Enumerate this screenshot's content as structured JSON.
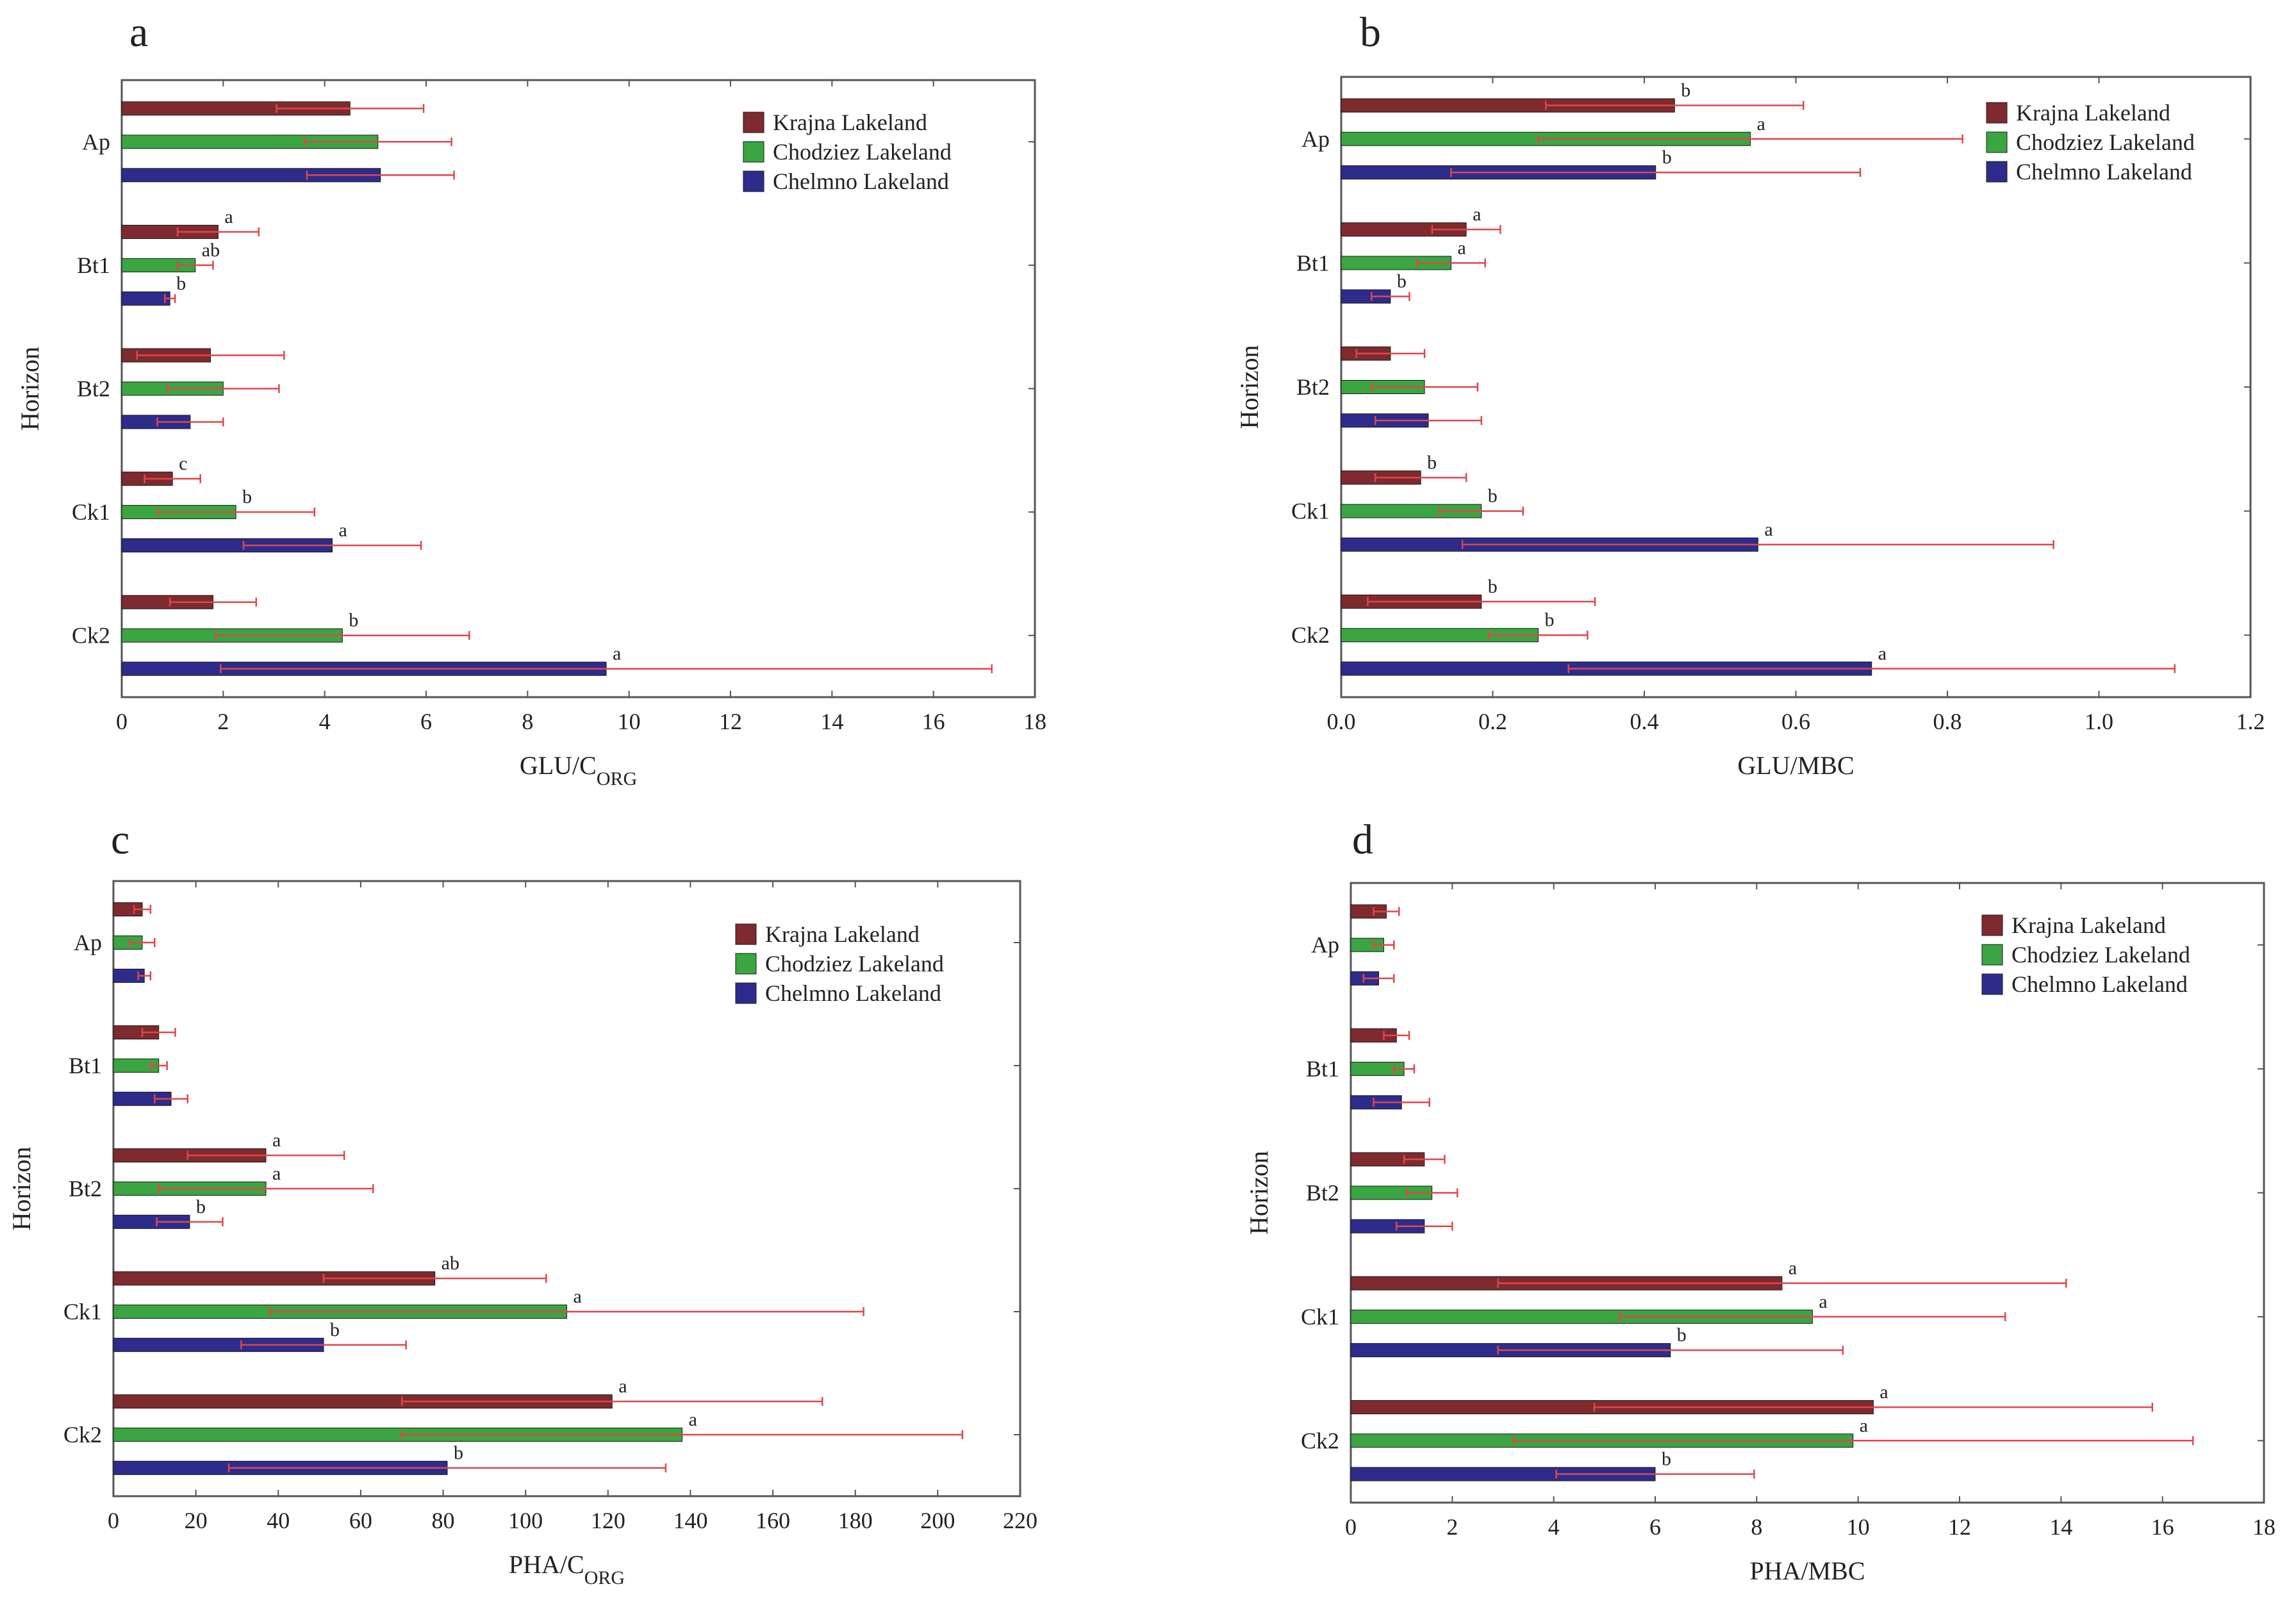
{
  "figure": {
    "legend": [
      "Krajna Lakeland",
      "Chodziez Lakeland",
      "Chelmno Lakeland"
    ],
    "colors": {
      "Krajna Lakeland": "#7f2a2e",
      "Chodziez Lakeland": "#3aa541",
      "Chelmno Lakeland": "#2d2c8c",
      "error_bar": "#e0464a",
      "frame": "#555555"
    }
  },
  "chart_data": [
    {
      "panel": "a",
      "type": "bar",
      "orientation": "horizontal",
      "ylabel": "Horizon",
      "xlabel_main": "GLU/C",
      "xlabel_sub": "ORG",
      "categories": [
        "Ap",
        "Bt1",
        "Bt2",
        "Ck1",
        "Ck2"
      ],
      "xlim": [
        0,
        18
      ],
      "ticks": [
        "0",
        "2",
        "4",
        "6",
        "8",
        "10",
        "12",
        "14",
        "16",
        "18"
      ],
      "series": [
        {
          "name": "Krajna Lakeland",
          "values": [
            4.5,
            1.9,
            1.75,
            1.0,
            1.8
          ],
          "errors": [
            1.45,
            0.8,
            1.45,
            0.55,
            0.85
          ],
          "labels": [
            "",
            "a",
            "",
            "c",
            ""
          ]
        },
        {
          "name": "Chodziez Lakeland",
          "values": [
            5.05,
            1.45,
            2.0,
            2.25,
            4.35
          ],
          "errors": [
            1.45,
            0.35,
            1.1,
            1.55,
            2.5
          ],
          "labels": [
            "",
            "ab",
            "",
            "b",
            "b"
          ]
        },
        {
          "name": "Chelmno Lakeland",
          "values": [
            5.1,
            0.95,
            1.35,
            4.15,
            9.55
          ],
          "errors": [
            1.45,
            0.1,
            0.65,
            1.75,
            7.6
          ],
          "labels": [
            "",
            "b",
            "",
            "a",
            "a"
          ]
        }
      ]
    },
    {
      "panel": "b",
      "type": "bar",
      "orientation": "horizontal",
      "ylabel": "Horizon",
      "xlabel_main": "GLU/MBC",
      "xlabel_sub": "",
      "categories": [
        "Ap",
        "Bt1",
        "Bt2",
        "Ck1",
        "Ck2"
      ],
      "xlim": [
        0,
        1.2
      ],
      "ticks": [
        "0.0",
        "0.2",
        "0.4",
        "0.6",
        "0.8",
        "1.0",
        "1.2"
      ],
      "series": [
        {
          "name": "Krajna Lakeland",
          "values": [
            0.44,
            0.165,
            0.065,
            0.105,
            0.185
          ],
          "errors": [
            0.17,
            0.045,
            0.045,
            0.06,
            0.15
          ],
          "labels": [
            "b",
            "a",
            "",
            "b",
            "b"
          ]
        },
        {
          "name": "Chodziez Lakeland",
          "values": [
            0.54,
            0.145,
            0.11,
            0.185,
            0.26
          ],
          "errors": [
            0.28,
            0.045,
            0.07,
            0.055,
            0.065
          ],
          "labels": [
            "a",
            "a",
            "",
            "b",
            "b"
          ]
        },
        {
          "name": "Chelmno Lakeland",
          "values": [
            0.415,
            0.065,
            0.115,
            0.55,
            0.7
          ],
          "errors": [
            0.27,
            0.025,
            0.07,
            0.39,
            0.4
          ],
          "labels": [
            "b",
            "b",
            "",
            "a",
            "a"
          ]
        }
      ]
    },
    {
      "panel": "c",
      "type": "bar",
      "orientation": "horizontal",
      "ylabel": "Horizon",
      "xlabel_main": "PHA/C",
      "xlabel_sub": "ORG",
      "categories": [
        "Ap",
        "Bt1",
        "Bt2",
        "Ck1",
        "Ck2"
      ],
      "xlim": [
        0,
        220
      ],
      "ticks": [
        "0",
        "20",
        "40",
        "60",
        "80",
        "100",
        "120",
        "140",
        "160",
        "180",
        "200",
        "220"
      ],
      "series": [
        {
          "name": "Krajna Lakeland",
          "values": [
            7,
            11,
            37,
            78,
            121
          ],
          "errors": [
            2,
            4,
            19,
            27,
            51
          ],
          "labels": [
            "",
            "",
            "a",
            "ab",
            "a"
          ]
        },
        {
          "name": "Chodziez Lakeland",
          "values": [
            7,
            11,
            37,
            110,
            138
          ],
          "errors": [
            3,
            2,
            26,
            72,
            68
          ],
          "labels": [
            "",
            "",
            "a",
            "a",
            "a"
          ]
        },
        {
          "name": "Chelmno Lakeland",
          "values": [
            7.5,
            14,
            18.5,
            51,
            81
          ],
          "errors": [
            1.5,
            4,
            8,
            20,
            53
          ],
          "labels": [
            "",
            "",
            "b",
            "b",
            "b"
          ]
        }
      ]
    },
    {
      "panel": "d",
      "type": "bar",
      "orientation": "horizontal",
      "ylabel": "Horizon",
      "xlabel_main": "PHA/MBC",
      "xlabel_sub": "",
      "categories": [
        "Ap",
        "Bt1",
        "Bt2",
        "Ck1",
        "Ck2"
      ],
      "xlim": [
        0,
        18
      ],
      "ticks": [
        "0",
        "2",
        "4",
        "6",
        "8",
        "10",
        "12",
        "14",
        "16",
        "18"
      ],
      "series": [
        {
          "name": "Krajna Lakeland",
          "values": [
            0.7,
            0.9,
            1.45,
            8.5,
            10.3
          ],
          "errors": [
            0.25,
            0.25,
            0.4,
            5.6,
            5.5
          ],
          "labels": [
            "",
            "",
            "",
            "a",
            "a"
          ]
        },
        {
          "name": "Chodziez Lakeland",
          "values": [
            0.65,
            1.05,
            1.6,
            9.1,
            9.9
          ],
          "errors": [
            0.2,
            0.2,
            0.5,
            3.8,
            6.7
          ],
          "labels": [
            "",
            "",
            "",
            "a",
            "a"
          ]
        },
        {
          "name": "Chelmno Lakeland",
          "values": [
            0.55,
            1.0,
            1.45,
            6.3,
            6.0
          ],
          "errors": [
            0.3,
            0.55,
            0.55,
            3.4,
            1.95
          ],
          "labels": [
            "",
            "",
            "",
            "b",
            "b"
          ]
        }
      ]
    }
  ]
}
